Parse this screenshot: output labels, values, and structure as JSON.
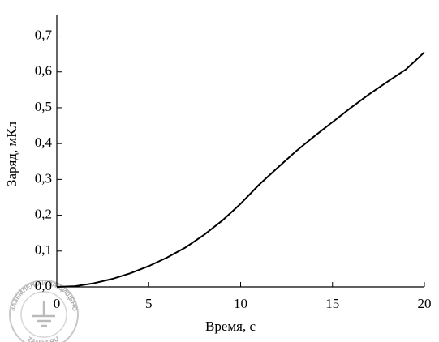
{
  "chart_data": {
    "type": "line",
    "x_label": "Время,  с",
    "y_label": "Заряд,  мКл",
    "x": [
      0,
      1,
      2,
      3,
      4,
      5,
      6,
      7,
      8,
      9,
      10,
      11,
      12,
      13,
      14,
      15,
      16,
      17,
      18,
      19,
      20
    ],
    "series": [
      {
        "color": "#000000",
        "values": [
          0,
          0.002,
          0.01,
          0.022,
          0.038,
          0.058,
          0.082,
          0.11,
          0.145,
          0.185,
          0.232,
          0.285,
          0.332,
          0.378,
          0.42,
          0.46,
          0.5,
          0.538,
          0.573,
          0.607,
          0.655
        ]
      }
    ],
    "xlim": [
      0,
      20
    ],
    "xticks": [
      0,
      5,
      10,
      15,
      20
    ],
    "ylim": [
      0,
      0.76
    ],
    "yticks": [
      {
        "value": 0,
        "label": "0,0"
      },
      {
        "value": 0.1,
        "label": "0,1"
      },
      {
        "value": 0.2,
        "label": "0,2"
      },
      {
        "value": 0.3,
        "label": "0,3"
      },
      {
        "value": 0.4,
        "label": "0,4"
      },
      {
        "value": 0.5,
        "label": "0,5"
      },
      {
        "value": 0.6,
        "label": "0,6"
      },
      {
        "value": 0.7,
        "label": "0,7"
      }
    ],
    "grid": false
  },
  "watermark": {
    "top_text": "ЗАЗЕМЛЕНО И ЗАЩИЩЕНО",
    "bottom_text": "ZANDZ.RU"
  }
}
